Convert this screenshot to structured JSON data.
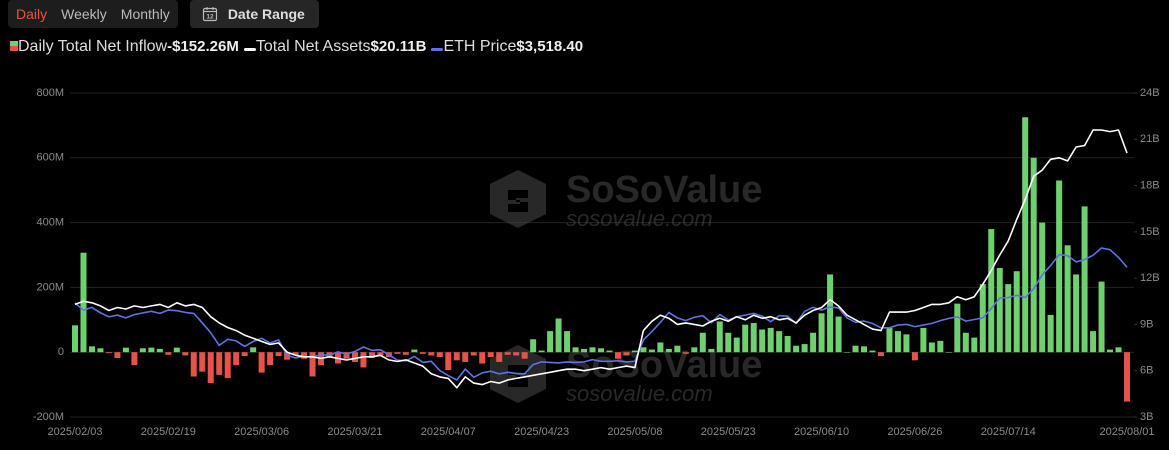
{
  "tabs": [
    "Daily",
    "Weekly",
    "Monthly"
  ],
  "date_range": {
    "icon_day": "12",
    "label": "Date Range"
  },
  "watermark": {
    "name": "SoSoValue",
    "url": "sosovalue.com"
  },
  "chart_data": {
    "type": "bar_line",
    "categories": [
      "2025/02/03",
      null,
      null,
      null,
      null,
      null,
      null,
      null,
      null,
      null,
      null,
      "2025/02/19",
      null,
      null,
      null,
      null,
      null,
      null,
      null,
      null,
      null,
      null,
      "2025/03/06",
      null,
      null,
      null,
      null,
      null,
      null,
      null,
      null,
      null,
      null,
      "2025/03/21",
      null,
      null,
      null,
      null,
      null,
      null,
      null,
      null,
      null,
      null,
      "2025/04/07",
      null,
      null,
      null,
      null,
      null,
      null,
      null,
      null,
      null,
      null,
      "2025/04/23",
      null,
      null,
      null,
      null,
      null,
      null,
      null,
      null,
      null,
      null,
      "2025/05/08",
      null,
      null,
      null,
      null,
      null,
      null,
      null,
      null,
      null,
      null,
      "2025/05/23",
      null,
      null,
      null,
      null,
      null,
      null,
      null,
      null,
      null,
      null,
      "2025/06/10",
      null,
      null,
      null,
      null,
      null,
      null,
      null,
      null,
      null,
      null,
      "2025/06/26",
      null,
      null,
      null,
      null,
      null,
      null,
      null,
      null,
      null,
      null,
      "2025/07/14",
      null,
      null,
      null,
      null,
      null,
      null,
      null,
      null,
      null,
      null,
      null,
      null,
      null,
      "2025/08/01"
    ],
    "series": [
      {
        "name": "Daily Total Net Inflow",
        "legend_value": "-$152.26M",
        "axis": "y",
        "kind": "bar",
        "color": "#6fd06f",
        "negative_color": "#e5534b",
        "values": [
          83,
          307,
          18,
          12,
          -3,
          -18,
          14,
          -40,
          12,
          14,
          10,
          -8,
          14,
          -10,
          -75,
          -60,
          -95,
          -70,
          -80,
          -40,
          -12,
          15,
          -63,
          -40,
          -12,
          -23,
          -10,
          -20,
          -75,
          -40,
          -15,
          -35,
          -20,
          -30,
          -47,
          -18,
          -10,
          -15,
          -5,
          -8,
          8,
          -5,
          -10,
          -15,
          -55,
          -25,
          -30,
          -10,
          -35,
          -15,
          -30,
          -8,
          -10,
          -20,
          40,
          5,
          65,
          104,
          65,
          15,
          10,
          15,
          12,
          5,
          -20,
          -10,
          5,
          15,
          8,
          30,
          10,
          20,
          -5,
          15,
          60,
          10,
          95,
          60,
          45,
          85,
          90,
          70,
          75,
          65,
          50,
          20,
          25,
          60,
          120,
          240,
          110,
          0,
          20,
          18,
          5,
          -12,
          75,
          65,
          55,
          -25,
          75,
          30,
          35,
          0,
          150,
          60,
          45,
          210,
          380,
          260,
          210,
          250,
          725,
          600,
          400,
          115,
          530,
          330,
          240,
          450,
          65,
          218,
          8,
          15,
          -152.26
        ]
      },
      {
        "name": "Total Net Assets",
        "legend_value": "$20.11B",
        "axis": "y2",
        "kind": "line",
        "color": "#ffffff",
        "values": [
          10.3,
          10.5,
          10.4,
          10.2,
          9.9,
          10.1,
          10.0,
          10.2,
          10.1,
          10.2,
          10.3,
          10.1,
          10.4,
          10.2,
          10.3,
          10.1,
          9.5,
          9.1,
          8.8,
          8.6,
          8.3,
          8.1,
          7.9,
          7.7,
          7.8,
          7.2,
          7.0,
          6.9,
          6.9,
          6.8,
          6.9,
          6.8,
          6.7,
          6.8,
          6.9,
          6.9,
          7.0,
          6.7,
          6.6,
          6.7,
          6.5,
          6.3,
          5.8,
          5.6,
          5.5,
          4.9,
          5.6,
          5.2,
          5.1,
          5.3,
          5.2,
          5.4,
          5.5,
          5.6,
          5.7,
          5.8,
          5.9,
          6.0,
          6.1,
          6.1,
          6.0,
          6.1,
          6.2,
          6.1,
          6.2,
          6.3,
          6.2,
          8.6,
          9.2,
          9.6,
          9.4,
          9.0,
          9.1,
          9.0,
          8.9,
          9.2,
          9.4,
          9.2,
          9.5,
          9.3,
          9.6,
          9.4,
          9.5,
          9.3,
          9.4,
          9.1,
          9.6,
          9.9,
          10.1,
          10.6,
          10.2,
          9.6,
          9.3,
          9.0,
          8.7,
          8.6,
          9.8,
          9.8,
          9.8,
          9.9,
          10.1,
          10.3,
          10.3,
          10.4,
          10.8,
          10.6,
          10.8,
          11.6,
          12.5,
          13.5,
          14.4,
          15.8,
          17.1,
          18.6,
          19.0,
          19.7,
          19.8,
          19.6,
          20.5,
          20.6,
          21.6,
          21.6,
          21.5,
          21.6,
          20.11
        ]
      },
      {
        "name": "ETH Price",
        "legend_value": "$3,518.40",
        "kind": "line",
        "color": "#5f73e0",
        "values": [
          2870,
          2740,
          2790,
          2690,
          2620,
          2650,
          2600,
          2660,
          2690,
          2720,
          2680,
          2740,
          2730,
          2700,
          2680,
          2510,
          2330,
          2100,
          2210,
          2180,
          2080,
          2170,
          2230,
          2140,
          2200,
          1920,
          1870,
          1900,
          1890,
          1930,
          1920,
          1980,
          1940,
          1990,
          2070,
          2010,
          2020,
          1930,
          1830,
          1820,
          1900,
          1790,
          1810,
          1640,
          1550,
          1470,
          1670,
          1520,
          1600,
          1630,
          1580,
          1610,
          1590,
          1580,
          1750,
          1800,
          1790,
          1780,
          1800,
          1790,
          1800,
          1840,
          1810,
          1810,
          1820,
          1800,
          1810,
          2200,
          2350,
          2520,
          2700,
          2600,
          2550,
          2610,
          2640,
          2510,
          2660,
          2560,
          2620,
          2650,
          2680,
          2630,
          2530,
          2640,
          2630,
          2500,
          2720,
          2790,
          2740,
          2800,
          2780,
          2600,
          2520,
          2540,
          2500,
          2420,
          2420,
          2470,
          2480,
          2440,
          2470,
          2500,
          2550,
          2590,
          2620,
          2540,
          2570,
          2600,
          2770,
          2960,
          2970,
          3010,
          2970,
          3130,
          3380,
          3550,
          3750,
          3730,
          3620,
          3660,
          3740,
          3870,
          3840,
          3700,
          3518.4
        ]
      }
    ],
    "ylim": [
      -200,
      800
    ],
    "yticks": [
      {
        "value": -200,
        "label": "-200M"
      },
      0,
      {
        "value": 200,
        "label": "200M"
      },
      {
        "value": 400,
        "label": "400M"
      },
      {
        "value": 600,
        "label": "600M"
      },
      {
        "value": 800,
        "label": "800M"
      }
    ],
    "y2lim": [
      3,
      24
    ],
    "y2ticks": [
      {
        "value": 3,
        "label": "3B"
      },
      {
        "value": 6,
        "label": "6B"
      },
      {
        "value": 9,
        "label": "9B"
      },
      {
        "value": 12,
        "label": "12B"
      },
      {
        "value": 15,
        "label": "15B"
      },
      {
        "value": 18,
        "label": "18B"
      },
      {
        "value": 21,
        "label": "21B"
      },
      {
        "value": 24,
        "label": "24B"
      }
    ],
    "grid": true
  }
}
